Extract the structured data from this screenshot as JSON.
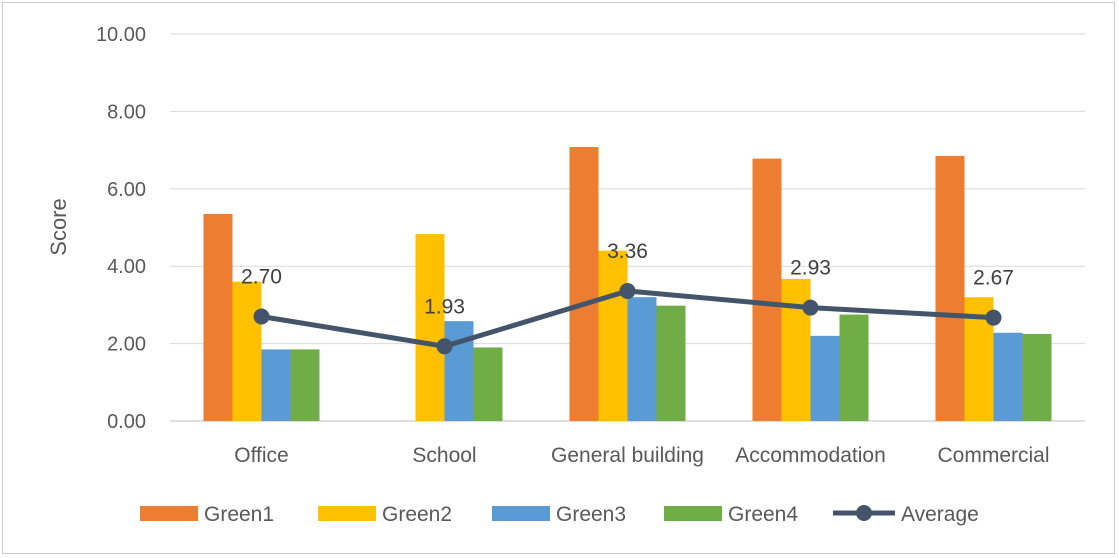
{
  "chart_data": {
    "type": "bar",
    "title": "",
    "xlabel": "",
    "ylabel": "Score",
    "ylim": [
      0,
      10
    ],
    "yticks": [
      "0.00",
      "2.00",
      "4.00",
      "6.00",
      "8.00",
      "10.00"
    ],
    "categories": [
      "Office",
      "School",
      "General building",
      "Accommodation",
      "Commercial"
    ],
    "series": [
      {
        "name": "Green1",
        "color": "#ED7D31",
        "values": [
          5.35,
          0,
          7.08,
          6.78,
          6.85
        ]
      },
      {
        "name": "Green2",
        "color": "#FFC000",
        "values": [
          3.6,
          4.83,
          4.4,
          3.67,
          3.2
        ]
      },
      {
        "name": "Green3",
        "color": "#5B9BD5",
        "values": [
          1.85,
          2.58,
          3.2,
          2.2,
          2.28
        ]
      },
      {
        "name": "Green4",
        "color": "#70AD47",
        "values": [
          1.85,
          1.9,
          2.98,
          2.75,
          2.25
        ]
      }
    ],
    "line_series": {
      "name": "Average",
      "color": "#44546A",
      "values": [
        2.7,
        1.93,
        3.36,
        2.93,
        2.67
      ],
      "labels": [
        "2.70",
        "1.93",
        "3.36",
        "2.93",
        "2.67"
      ]
    },
    "grid": true,
    "legend": "bottom"
  }
}
